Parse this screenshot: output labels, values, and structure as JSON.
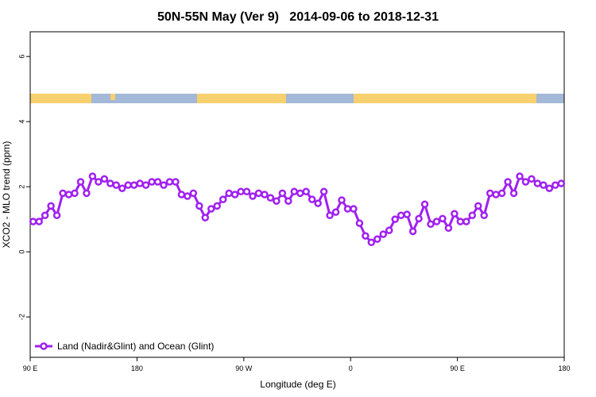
{
  "chart_data": {
    "type": "line",
    "title": "50N-55N May (Ver 9)   2014-09-06 to 2018-12-31",
    "x_label": "Longitude (deg E)",
    "y_label": "XCO2 - MLO trend (ppm)",
    "xlim": [
      90,
      540
    ],
    "xticks": [
      {
        "value": 90,
        "label": "90 E"
      },
      180,
      {
        "value": 270,
        "label": "90 W"
      },
      {
        "value": 360,
        "label": "0"
      },
      {
        "value": 450,
        "label": "90 E"
      },
      {
        "value": 540,
        "label": "180"
      }
    ],
    "ylim": [
      -3.24,
      6.76
    ],
    "yticks": [
      -2,
      0,
      2,
      4,
      6
    ],
    "legend": "bottom-left",
    "series": [
      {
        "name": "Land (Nadir&Glint) and Ocean (Glint)",
        "color": "#a020f0",
        "x": [
          92.5,
          97.5,
          102.5,
          107.5,
          112.5,
          117.5,
          122.5,
          127.5,
          132.5,
          137.5,
          142.5,
          147.5,
          152.5,
          157.5,
          162.5,
          167.5,
          172.5,
          177.5,
          182.5,
          187.5,
          192.5,
          197.5,
          202.5,
          207.5,
          212.5,
          217.5,
          222.5,
          227.5,
          232.5,
          237.5,
          242.5,
          247.5,
          252.5,
          257.5,
          262.5,
          267.5,
          272.5,
          277.5,
          282.5,
          287.5,
          292.5,
          297.5,
          302.5,
          307.5,
          312.5,
          317.5,
          322.5,
          327.5,
          332.5,
          337.5,
          342.5,
          347.5,
          352.5,
          357.5,
          362.5,
          367.5,
          372.5,
          377.5,
          382.5,
          387.5,
          392.5,
          397.5,
          402.5,
          407.5,
          412.5,
          417.5,
          422.5,
          427.5,
          432.5,
          437.5,
          442.5,
          447.5,
          452.5,
          457.5,
          462.5,
          467.5,
          472.5,
          477.5,
          482.5,
          487.5,
          492.5,
          497.5,
          502.5,
          507.5,
          512.5,
          517.5,
          522.5,
          527.5,
          532.5,
          537.5
        ],
        "values": [
          0.93,
          0.93,
          1.12,
          1.41,
          1.12,
          1.8,
          1.76,
          1.8,
          2.15,
          1.8,
          2.32,
          2.15,
          2.24,
          2.1,
          2.05,
          1.95,
          2.05,
          2.05,
          2.1,
          2.05,
          2.15,
          2.15,
          2.05,
          2.15,
          2.15,
          1.76,
          1.71,
          1.8,
          1.41,
          1.05,
          1.32,
          1.41,
          1.61,
          1.8,
          1.76,
          1.85,
          1.85,
          1.71,
          1.8,
          1.76,
          1.66,
          1.56,
          1.8,
          1.56,
          1.85,
          1.8,
          1.85,
          1.61,
          1.49,
          1.85,
          1.12,
          1.22,
          1.59,
          1.32,
          1.32,
          0.88,
          0.49,
          0.29,
          0.39,
          0.54,
          0.66,
          1.0,
          1.12,
          1.15,
          0.63,
          1.02,
          1.46,
          0.85,
          0.93,
          1.02,
          0.73,
          1.17,
          0.93,
          0.93,
          1.12,
          1.41,
          1.12,
          1.8,
          1.76,
          1.8,
          2.15,
          1.8,
          2.32,
          2.15,
          2.24,
          2.1,
          2.05,
          1.95,
          2.05,
          2.1
        ]
      }
    ]
  }
}
